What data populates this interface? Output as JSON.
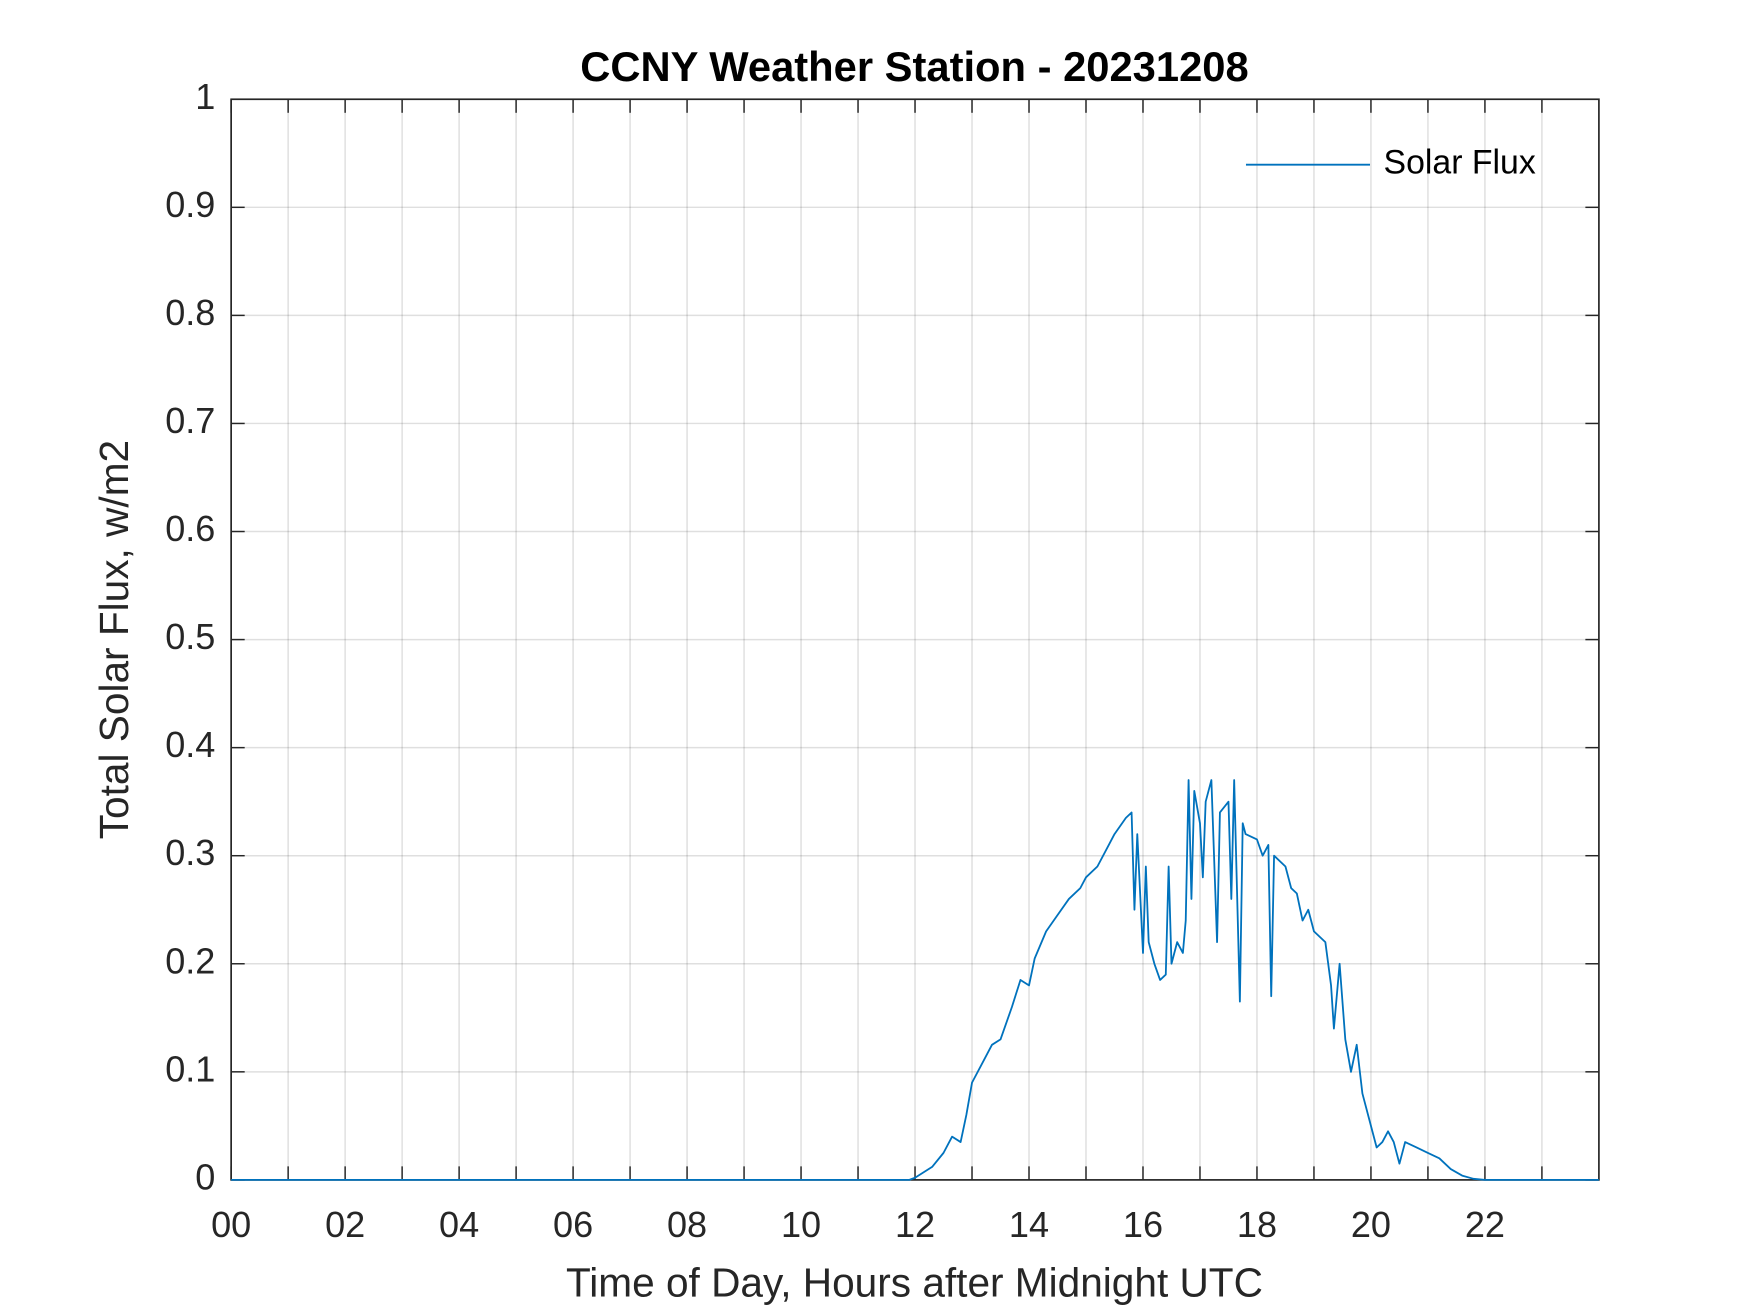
{
  "chart_data": {
    "type": "line",
    "title": "CCNY Weather Station - 20231208",
    "x_label": "Time of Day, Hours after Midnight UTC",
    "y_label": "Total Solar Flux, w/m2",
    "xlim": [
      0,
      24
    ],
    "ylim": [
      0,
      1
    ],
    "xticks": [
      {
        "value": 0,
        "label": "00"
      },
      {
        "value": 2,
        "label": "02"
      },
      {
        "value": 4,
        "label": "04"
      },
      {
        "value": 6,
        "label": "06"
      },
      {
        "value": 8,
        "label": "08"
      },
      {
        "value": 10,
        "label": "10"
      },
      {
        "value": 12,
        "label": "12"
      },
      {
        "value": 14,
        "label": "14"
      },
      {
        "value": 16,
        "label": "16"
      },
      {
        "value": 18,
        "label": "18"
      },
      {
        "value": 20,
        "label": "20"
      },
      {
        "value": 22,
        "label": "22"
      }
    ],
    "minor_xticks": [
      1,
      3,
      5,
      7,
      9,
      11,
      13,
      15,
      17,
      19,
      21,
      23
    ],
    "yticks": [
      0,
      0.1,
      0.2,
      0.3,
      0.4,
      0.5,
      0.6,
      0.7,
      0.8,
      0.9,
      1
    ],
    "grid": true,
    "legend": "upper right",
    "x": [
      0,
      11.9,
      12.0,
      12.3,
      12.5,
      12.65,
      12.8,
      12.9,
      13.0,
      13.2,
      13.35,
      13.5,
      13.7,
      13.85,
      14.0,
      14.1,
      14.3,
      14.5,
      14.7,
      14.9,
      15.0,
      15.2,
      15.4,
      15.5,
      15.7,
      15.8,
      15.85,
      15.9,
      16.0,
      16.05,
      16.1,
      16.2,
      16.3,
      16.4,
      16.45,
      16.5,
      16.6,
      16.7,
      16.75,
      16.8,
      16.85,
      16.9,
      17.0,
      17.05,
      17.1,
      17.2,
      17.3,
      17.35,
      17.5,
      17.55,
      17.6,
      17.7,
      17.75,
      17.8,
      18.0,
      18.1,
      18.2,
      18.25,
      18.3,
      18.5,
      18.6,
      18.7,
      18.8,
      18.9,
      19.0,
      19.2,
      19.3,
      19.35,
      19.45,
      19.55,
      19.65,
      19.75,
      19.85,
      20.0,
      20.1,
      20.2,
      20.3,
      20.4,
      20.5,
      20.6,
      20.8,
      21.0,
      21.2,
      21.4,
      21.6,
      21.8,
      22.0,
      24
    ],
    "series": [
      {
        "name": "Solar Flux",
        "color": "#0072bd",
        "values": [
          0,
          0,
          0.002,
          0.012,
          0.025,
          0.04,
          0.035,
          0.06,
          0.09,
          0.11,
          0.125,
          0.13,
          0.16,
          0.185,
          0.18,
          0.205,
          0.23,
          0.245,
          0.26,
          0.27,
          0.28,
          0.29,
          0.31,
          0.32,
          0.335,
          0.34,
          0.25,
          0.32,
          0.21,
          0.29,
          0.22,
          0.2,
          0.185,
          0.19,
          0.29,
          0.2,
          0.22,
          0.21,
          0.24,
          0.37,
          0.26,
          0.36,
          0.33,
          0.28,
          0.35,
          0.37,
          0.22,
          0.34,
          0.35,
          0.26,
          0.37,
          0.165,
          0.33,
          0.32,
          0.315,
          0.3,
          0.31,
          0.17,
          0.3,
          0.29,
          0.27,
          0.265,
          0.24,
          0.25,
          0.23,
          0.22,
          0.18,
          0.14,
          0.2,
          0.13,
          0.1,
          0.125,
          0.08,
          0.05,
          0.03,
          0.035,
          0.045,
          0.035,
          0.015,
          0.035,
          0.03,
          0.025,
          0.02,
          0.01,
          0.004,
          0.001,
          0,
          0
        ]
      }
    ]
  }
}
